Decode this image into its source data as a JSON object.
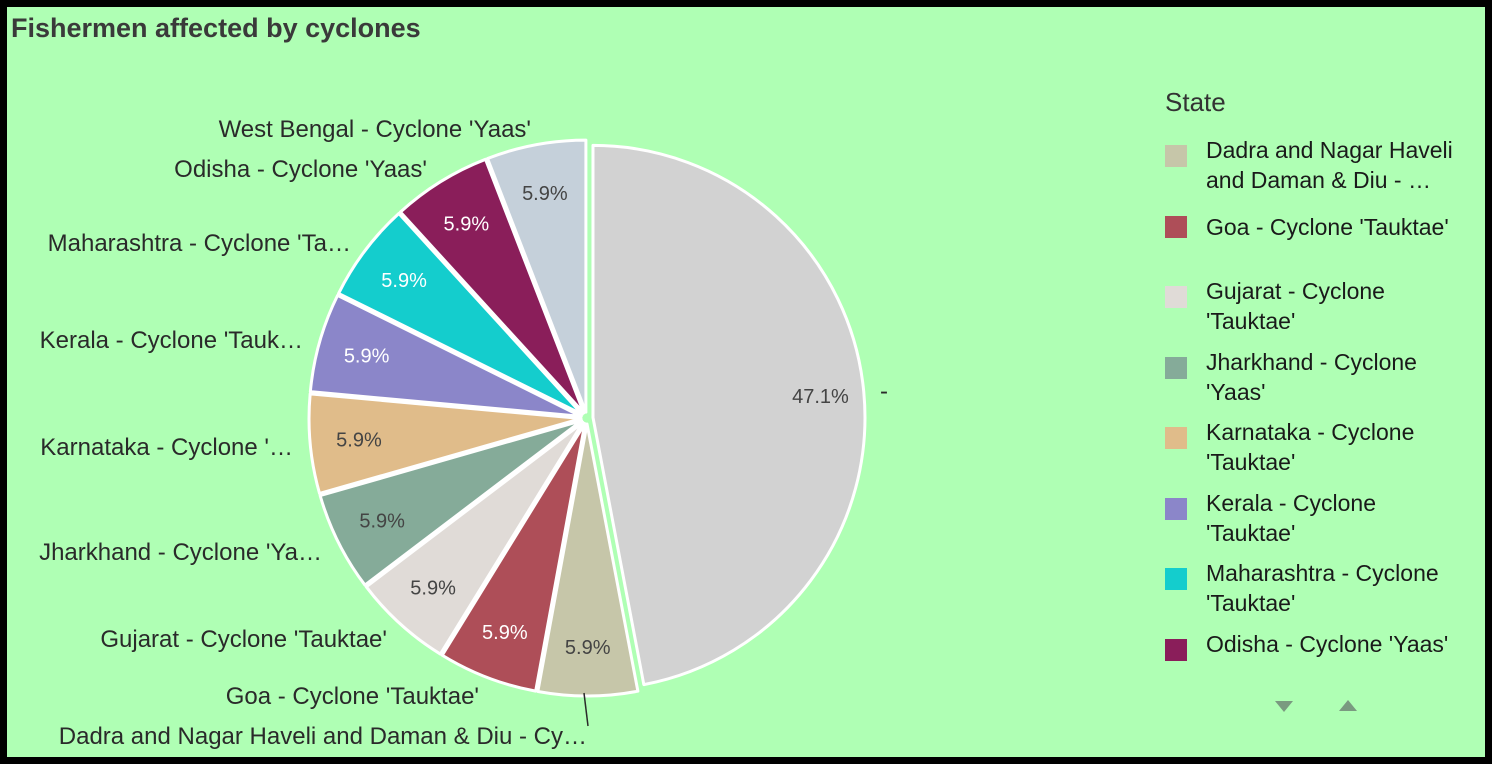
{
  "chart_data": {
    "type": "pie",
    "title": "Fishermen affected by cyclones",
    "legend_title": "State",
    "legend_placement": "right",
    "slices": [
      {
        "label": "Dadra and Nagar Haveli and Daman & Diu - Cy…",
        "percent_label": "5.9%",
        "value": 5.9,
        "color": "#c6c6a9"
      },
      {
        "label": "Goa - Cyclone 'Tauktae'",
        "percent_label": "5.9%",
        "value": 5.9,
        "color": "#ae4e58"
      },
      {
        "label": "Gujarat - Cyclone 'Tauktae'",
        "percent_label": "5.9%",
        "value": 5.9,
        "color": "#e0dbd7"
      },
      {
        "label": "Jharkhand - Cyclone 'Ya…",
        "percent_label": "5.9%",
        "value": 5.9,
        "color": "#85ab99"
      },
      {
        "label": "Karnataka - Cyclone '…",
        "percent_label": "5.9%",
        "value": 5.9,
        "color": "#e0bc8a"
      },
      {
        "label": "Kerala - Cyclone 'Tauk…",
        "percent_label": "5.9%",
        "value": 5.9,
        "color": "#8b86c9"
      },
      {
        "label": "Maharashtra - Cyclone 'Ta…",
        "percent_label": "5.9%",
        "value": 5.9,
        "color": "#14cdcd"
      },
      {
        "label": "Odisha - Cyclone 'Yaas'",
        "percent_label": "5.9%",
        "value": 5.9,
        "color": "#8a1e5a"
      },
      {
        "label": "West Bengal - Cyclone 'Yaas'",
        "percent_label": "5.9%",
        "value": 5.9,
        "color": "#c5d0da"
      },
      {
        "label": "-",
        "percent_label": "47.1%",
        "value": 47.1,
        "color": "#d2d2d2"
      }
    ],
    "legend_items": [
      {
        "label": "Dadra and Nagar Haveli and Daman & Diu - …",
        "color": "#c6c6a9"
      },
      {
        "label": "Goa - Cyclone 'Tauktae'",
        "color": "#ae4e58"
      },
      {
        "label": "Gujarat - Cyclone 'Tauktae'",
        "color": "#e0dbd7"
      },
      {
        "label": "Jharkhand - Cyclone 'Yaas'",
        "color": "#85ab99"
      },
      {
        "label": "Karnataka - Cyclone 'Tauktae'",
        "color": "#e0bc8a"
      },
      {
        "label": "Kerala - Cyclone 'Tauktae'",
        "color": "#8b86c9"
      },
      {
        "label": "Maharashtra - Cyclone 'Tauktae'",
        "color": "#14cdcd"
      },
      {
        "label": "Odisha - Cyclone 'Yaas'",
        "color": "#8a1e5a"
      }
    ]
  },
  "legend_nav": {
    "down_icon": "triangle-down-icon",
    "up_icon": "triangle-up-icon",
    "color": "#7a9a80"
  }
}
